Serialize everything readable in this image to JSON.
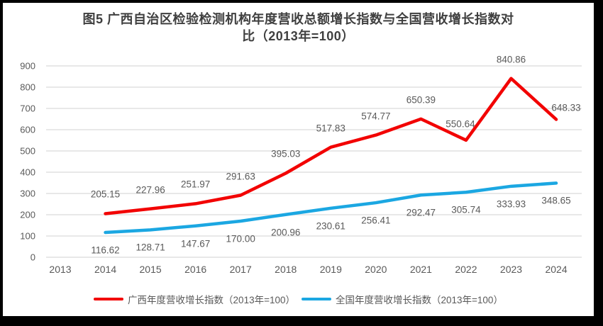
{
  "title": {
    "line1": "图5  广西自治区检验检测机构年度营收总额增长指数与全国营收增长指数对",
    "line2": "比（2013年=100）"
  },
  "chart_data": {
    "type": "line",
    "categories": [
      "2013",
      "2014",
      "2015",
      "2016",
      "2017",
      "2018",
      "2019",
      "2020",
      "2021",
      "2022",
      "2023",
      "2024"
    ],
    "series": [
      {
        "name": "广西年度营收增长指数（2013年=100）",
        "color": "#f20202",
        "values": [
          null,
          205.15,
          227.96,
          251.97,
          291.63,
          395.03,
          517.83,
          574.77,
          650.39,
          550.64,
          840.86,
          648.33
        ]
      },
      {
        "name": "全国年度营收增长指数（2013年=100）",
        "color": "#1ba7e2",
        "values": [
          null,
          116.62,
          128.71,
          147.67,
          170.0,
          200.96,
          230.61,
          256.41,
          292.47,
          305.74,
          333.93,
          348.65
        ]
      }
    ],
    "ylim": [
      0,
      900
    ],
    "ytick_step": 100,
    "grid": true,
    "grid_color": "#e0e0e0",
    "legend_position": "bottom",
    "label_decimals": 2
  }
}
